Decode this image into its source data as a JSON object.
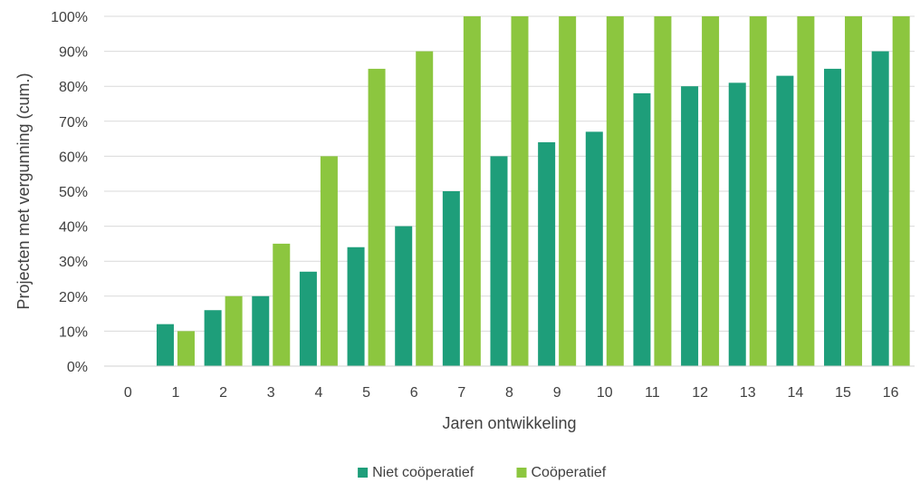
{
  "chart_data": {
    "type": "bar",
    "xlabel": "Jaren ontwikkeling",
    "ylabel": "Projecten met vergunning (cum.)",
    "categories": [
      "0",
      "1",
      "2",
      "3",
      "4",
      "5",
      "6",
      "7",
      "8",
      "9",
      "10",
      "11",
      "12",
      "13",
      "14",
      "15",
      "16"
    ],
    "ylim": [
      0,
      100
    ],
    "yticks": [
      "0%",
      "10%",
      "20%",
      "30%",
      "40%",
      "50%",
      "60%",
      "70%",
      "80%",
      "90%",
      "100%"
    ],
    "grid": true,
    "legend_position": "bottom",
    "series": [
      {
        "name": "Niet coöperatief",
        "color": "#1E9E7A",
        "values": [
          0,
          12,
          16,
          20,
          27,
          34,
          40,
          50,
          60,
          64,
          67,
          78,
          80,
          81,
          83,
          85,
          90
        ]
      },
      {
        "name": "Coöperatief",
        "color": "#8CC63F",
        "values": [
          0,
          10,
          20,
          35,
          60,
          85,
          90,
          100,
          100,
          100,
          100,
          100,
          100,
          100,
          100,
          100,
          100
        ]
      }
    ]
  }
}
